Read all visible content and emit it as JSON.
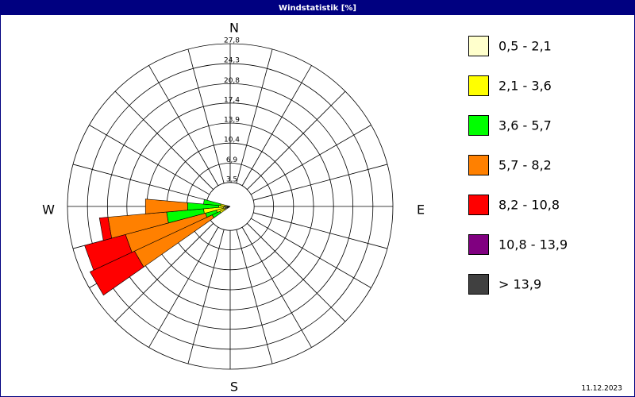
{
  "chart_data": {
    "type": "windrose",
    "title": "Windstatistik [%]",
    "date": "11.12.2023",
    "compass": {
      "north": "N",
      "east": "E",
      "south": "S",
      "west": "W"
    },
    "directions": [
      240,
      250,
      260,
      270,
      280
    ],
    "rlim": [
      0,
      27.8
    ],
    "rticks": [
      {
        "value": 3.5,
        "label": "3,5"
      },
      {
        "value": 6.9,
        "label": "6,9"
      },
      {
        "value": 10.4,
        "label": "10,4"
      },
      {
        "value": 13.9,
        "label": "13,9"
      },
      {
        "value": 17.4,
        "label": "17,4"
      },
      {
        "value": 20.8,
        "label": "20,8"
      },
      {
        "value": 24.3,
        "label": "24,3"
      },
      {
        "value": 27.8,
        "label": "27,8"
      }
    ],
    "series": [
      {
        "name": "0,5 - 2,1",
        "color": "#ffffcc",
        "values": [
          0.3,
          0.3,
          0.5,
          0.3,
          0
        ]
      },
      {
        "name": "2,1 - 3,6",
        "color": "#ffff00",
        "values": [
          1,
          1.5,
          3.5,
          1,
          1
        ]
      },
      {
        "name": "3,6 - 5,7",
        "color": "#00ff00",
        "values": [
          1.5,
          2,
          6.5,
          5.5,
          3
        ]
      },
      {
        "name": "5,7 - 8,2",
        "color": "#ff8000",
        "values": [
          15,
          14.5,
          10.3,
          7.4,
          0
        ]
      },
      {
        "name": "8,2 - 10,8",
        "color": "#ff0000",
        "values": [
          8.6,
          7.4,
          1.5,
          0,
          0
        ]
      },
      {
        "name": "10,8 - 13,9",
        "color": "#800080",
        "values": [
          0,
          0,
          0,
          0,
          0
        ]
      },
      {
        "name": " > 13,9",
        "color": "#404040",
        "values": [
          0,
          0,
          0,
          0,
          0
        ]
      }
    ]
  }
}
